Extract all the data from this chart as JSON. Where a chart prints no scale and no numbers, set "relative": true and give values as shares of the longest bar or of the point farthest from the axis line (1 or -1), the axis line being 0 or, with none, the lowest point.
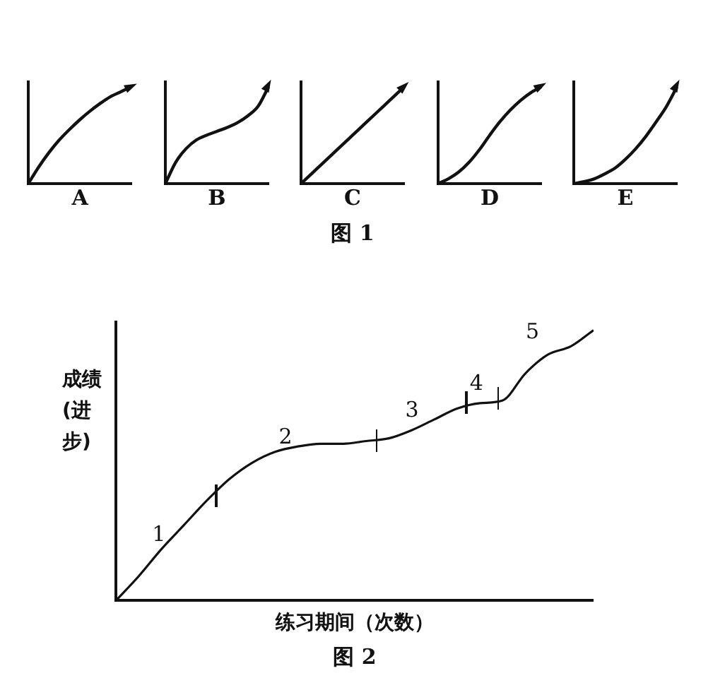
{
  "chart_data": [
    {
      "type": "line",
      "relative": true,
      "marker": "none",
      "xlabel": "A",
      "categories": [
        null,
        null,
        null,
        null,
        null,
        null,
        null,
        null,
        null,
        null,
        null
      ],
      "color": "#111111",
      "values": [
        0,
        0.17,
        0.32,
        0.45,
        0.56,
        0.66,
        0.75,
        0.83,
        0.9,
        0.95,
        1
      ]
    },
    {
      "type": "line",
      "relative": true,
      "marker": "none",
      "xlabel": "B",
      "categories": [
        null,
        null,
        null,
        null,
        null,
        null,
        null,
        null,
        null,
        null,
        null
      ],
      "color": "#111111",
      "values": [
        0,
        0.22,
        0.36,
        0.45,
        0.5,
        0.54,
        0.58,
        0.63,
        0.7,
        0.8,
        1
      ]
    },
    {
      "type": "line",
      "relative": true,
      "marker": "none",
      "xlabel": "C",
      "title": "图 1",
      "categories": [
        null,
        null,
        null,
        null,
        null,
        null,
        null,
        null,
        null,
        null,
        null
      ],
      "color": "#111111",
      "values": [
        0,
        0.1,
        0.2,
        0.3,
        0.4,
        0.5,
        0.6,
        0.7,
        0.8,
        0.9,
        1
      ]
    },
    {
      "type": "line",
      "relative": true,
      "marker": "none",
      "xlabel": "D",
      "categories": [
        null,
        null,
        null,
        null,
        null,
        null,
        null,
        null,
        null,
        null,
        null
      ],
      "color": "#111111",
      "values": [
        0,
        0.05,
        0.12,
        0.22,
        0.35,
        0.5,
        0.64,
        0.76,
        0.86,
        0.94,
        1
      ]
    },
    {
      "type": "line",
      "relative": true,
      "marker": "none",
      "xlabel": "E",
      "categories": [
        null,
        null,
        null,
        null,
        null,
        null,
        null,
        null,
        null,
        null,
        null
      ],
      "color": "#111111",
      "values": [
        0,
        0.02,
        0.05,
        0.1,
        0.16,
        0.25,
        0.36,
        0.49,
        0.64,
        0.8,
        1
      ]
    },
    {
      "type": "line",
      "relative": true,
      "marker": "none",
      "title": "图 2",
      "xlabel": "练习期间（次数）",
      "ylabel": "成绩(进步)",
      "annotations": [
        "1",
        "2",
        "3",
        "4",
        "5"
      ],
      "categories": [
        null,
        null,
        null,
        null,
        null,
        null,
        null,
        null,
        null,
        null,
        null,
        null,
        null,
        null,
        null,
        null,
        null,
        null,
        null,
        null,
        null,
        null
      ],
      "color": "#111111",
      "values": [
        0,
        0.09,
        0.19,
        0.28,
        0.37,
        0.45,
        0.51,
        0.55,
        0.57,
        0.58,
        0.58,
        0.59,
        0.6,
        0.63,
        0.67,
        0.71,
        0.73,
        0.74,
        0.84,
        0.91,
        0.94,
        1
      ]
    }
  ]
}
